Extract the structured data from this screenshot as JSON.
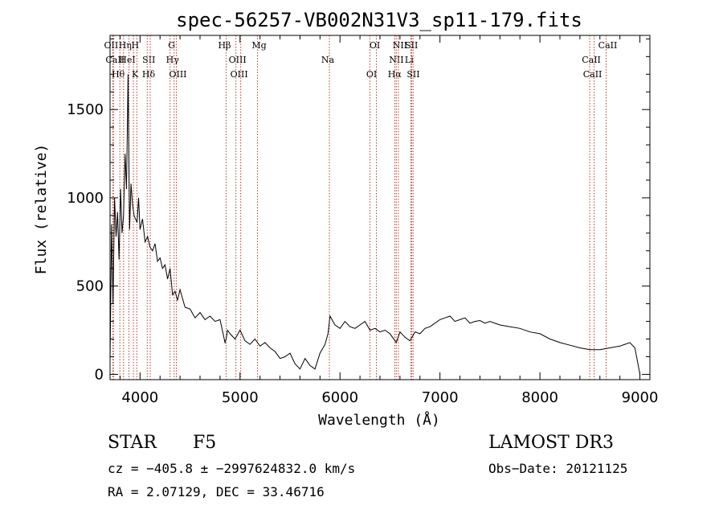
{
  "chart_data": {
    "type": "line",
    "title": "spec-56257-VB002N31V3_sp11-179.fits",
    "xlabel": "Wavelength (Å)",
    "ylabel": "Flux (relative)",
    "xlim": [
      3700,
      9100
    ],
    "ylim": [
      -30,
      1920
    ],
    "xticks": [
      4000,
      5000,
      6000,
      7000,
      8000,
      9000
    ],
    "xtick_labels": [
      "4000",
      "5000",
      "6000",
      "7000",
      "8000",
      "9000"
    ],
    "yticks": [
      0,
      500,
      1000,
      1500
    ],
    "ytick_labels": [
      "0",
      "500",
      "1000",
      "1500"
    ],
    "grid": false,
    "series": [
      {
        "name": "flux",
        "color": "#000000",
        "x": [
          3700,
          3715,
          3730,
          3745,
          3760,
          3775,
          3790,
          3805,
          3820,
          3835,
          3850,
          3865,
          3880,
          3895,
          3910,
          3925,
          3940,
          3955,
          3970,
          3985,
          4000,
          4025,
          4050,
          4075,
          4100,
          4125,
          4150,
          4175,
          4200,
          4225,
          4250,
          4275,
          4300,
          4325,
          4350,
          4375,
          4400,
          4450,
          4500,
          4550,
          4600,
          4650,
          4700,
          4750,
          4800,
          4850,
          4861,
          4875,
          4900,
          4950,
          5000,
          5050,
          5100,
          5150,
          5200,
          5250,
          5300,
          5350,
          5400,
          5450,
          5500,
          5550,
          5600,
          5650,
          5700,
          5750,
          5800,
          5850,
          5880,
          5900,
          5950,
          6000,
          6050,
          6100,
          6150,
          6200,
          6250,
          6300,
          6350,
          6400,
          6450,
          6500,
          6563,
          6600,
          6650,
          6700,
          6750,
          6800,
          6850,
          6900,
          6950,
          7000,
          7050,
          7100,
          7150,
          7200,
          7250,
          7300,
          7350,
          7400,
          7450,
          7500,
          7600,
          7700,
          7800,
          7900,
          8000,
          8100,
          8200,
          8300,
          8400,
          8500,
          8600,
          8700,
          8800,
          8850,
          8900,
          8950,
          8980,
          9000
        ],
        "y": [
          80,
          850,
          400,
          1000,
          780,
          920,
          650,
          1050,
          800,
          900,
          1250,
          1050,
          1700,
          820,
          1080,
          960,
          900,
          880,
          860,
          1000,
          820,
          880,
          750,
          780,
          720,
          700,
          740,
          640,
          660,
          600,
          620,
          540,
          600,
          450,
          470,
          420,
          480,
          380,
          370,
          320,
          350,
          310,
          330,
          300,
          310,
          180,
          200,
          250,
          230,
          200,
          250,
          190,
          170,
          200,
          160,
          180,
          150,
          130,
          90,
          100,
          120,
          60,
          30,
          90,
          50,
          30,
          120,
          170,
          230,
          330,
          280,
          260,
          300,
          270,
          260,
          280,
          300,
          250,
          260,
          240,
          250,
          230,
          180,
          240,
          210,
          190,
          240,
          230,
          260,
          270,
          290,
          310,
          320,
          330,
          300,
          310,
          320,
          290,
          300,
          305,
          290,
          300,
          280,
          270,
          260,
          240,
          230,
          200,
          180,
          165,
          150,
          140,
          140,
          150,
          160,
          170,
          180,
          150,
          60,
          0
        ]
      }
    ],
    "lines": [
      {
        "label": "OII",
        "wavelength": 3727
      },
      {
        "label": "CaII",
        "wavelength": 3734
      },
      {
        "label": "Hθ",
        "wavelength": 3798
      },
      {
        "label": "Hη",
        "wavelength": 3835
      },
      {
        "label": "HeI",
        "wavelength": 3889
      },
      {
        "label": "K",
        "wavelength": 3934
      },
      {
        "label": "H",
        "wavelength": 3968
      },
      {
        "label": "SII",
        "wavelength": 4072
      },
      {
        "label": "Hδ",
        "wavelength": 4102
      },
      {
        "label": "G",
        "wavelength": 4300
      },
      {
        "label": "Hγ",
        "wavelength": 4341
      },
      {
        "label": "OIII",
        "wavelength": 4363
      },
      {
        "label": "Hβ",
        "wavelength": 4861
      },
      {
        "label": "OIII",
        "wavelength": 4959
      },
      {
        "label": "OIII",
        "wavelength": 5007
      },
      {
        "label": "Mg",
        "wavelength": 5175
      },
      {
        "label": "Na",
        "wavelength": 5894
      },
      {
        "label": "OI",
        "wavelength": 6300
      },
      {
        "label": "OI",
        "wavelength": 6364
      },
      {
        "label": "NII",
        "wavelength": 6548
      },
      {
        "label": "Hα",
        "wavelength": 6563
      },
      {
        "label": "NII",
        "wavelength": 6584
      },
      {
        "label": "Li",
        "wavelength": 6708
      },
      {
        "label": "SII",
        "wavelength": 6717
      },
      {
        "label": "SII",
        "wavelength": 6731
      },
      {
        "label": "CaII",
        "wavelength": 8498
      },
      {
        "label": "CaII",
        "wavelength": 8542
      },
      {
        "label": "CaII",
        "wavelength": 8662
      }
    ],
    "line_color": "#c0392b"
  },
  "info": {
    "object_class": "STAR",
    "subclass": "F5",
    "survey": "LAMOST DR3",
    "redshift_line": "cz = −405.8 ± −2997624832.0 km/s",
    "obs_date_line": "Obs−Date: 20121125",
    "coords_line": "RA =   2.07129, DEC =  33.46716"
  }
}
